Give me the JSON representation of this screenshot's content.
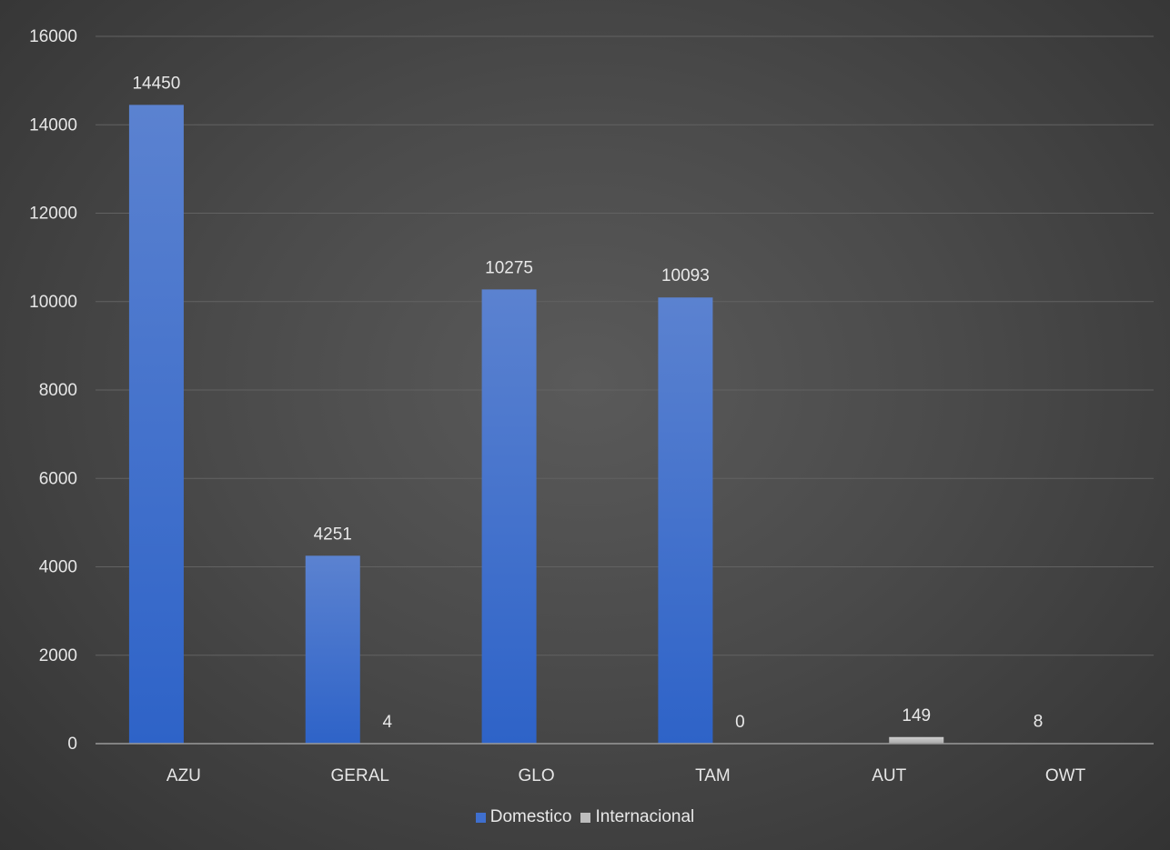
{
  "chart_data": {
    "type": "bar",
    "categories": [
      "AZU",
      "GERAL",
      "GLO",
      "TAM",
      "AUT",
      "OWT"
    ],
    "series": [
      {
        "name": "Domestico",
        "values": [
          14450,
          4251,
          10275,
          10093,
          0,
          8
        ],
        "labels": [
          "14450",
          "4251",
          "10275",
          "10093",
          "",
          "8"
        ],
        "color": "#3f6fce"
      },
      {
        "name": "Internacional",
        "values": [
          0,
          4,
          0,
          0,
          149,
          0
        ],
        "labels": [
          "",
          "4",
          "",
          "0",
          "149",
          ""
        ],
        "color": "#bdbdbd"
      }
    ],
    "ylim": [
      0,
      16000
    ],
    "yticks": [
      "0",
      "2000",
      "4000",
      "6000",
      "8000",
      "10000",
      "12000",
      "14000",
      "16000"
    ],
    "grid": true,
    "legend_position": "bottom"
  }
}
